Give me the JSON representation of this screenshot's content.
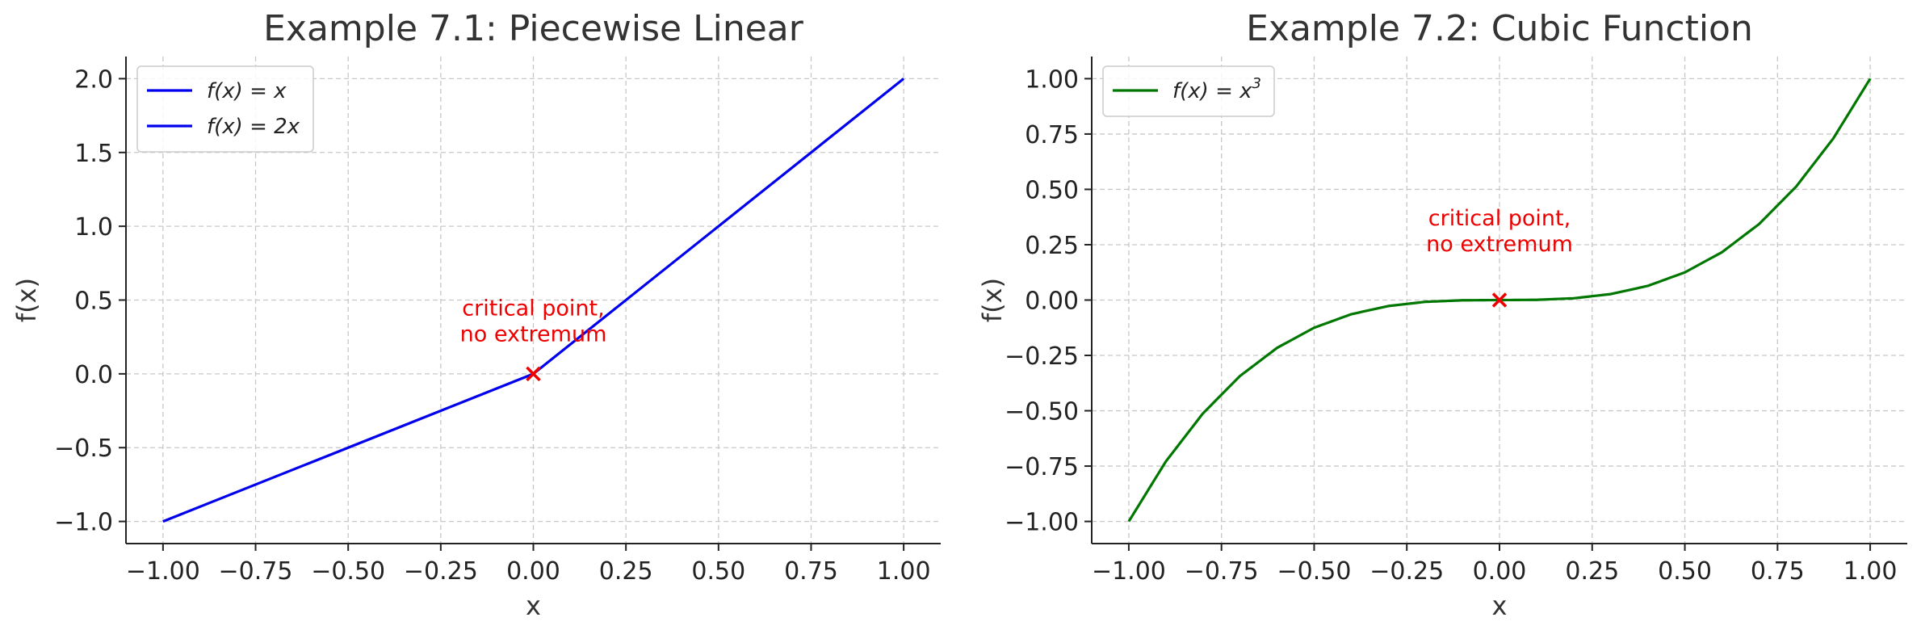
{
  "chart_data": [
    {
      "type": "line",
      "title": "Example 7.1: Piecewise Linear",
      "xlabel": "x",
      "ylabel": "f(x)",
      "xlim": [
        -1.1,
        1.1
      ],
      "ylim": [
        -1.15,
        2.15
      ],
      "grid": true,
      "legend_position": "top-left",
      "x_ticks": [
        "−1.00",
        "−0.75",
        "−0.50",
        "−0.25",
        "0.00",
        "0.25",
        "0.50",
        "0.75",
        "1.00"
      ],
      "x_tick_values": [
        -1.0,
        -0.75,
        -0.5,
        -0.25,
        0.0,
        0.25,
        0.5,
        0.75,
        1.0
      ],
      "y_ticks": [
        "−1.0",
        "−0.5",
        "0.0",
        "0.5",
        "1.0",
        "1.5",
        "2.0"
      ],
      "y_tick_values": [
        -1.0,
        -0.5,
        0.0,
        0.5,
        1.0,
        1.5,
        2.0
      ],
      "series": [
        {
          "name": "f(x) = x",
          "legend_main": "f(x) = x",
          "legend_sup": "",
          "color": "#0000ee",
          "x": [
            -1.0,
            0.0
          ],
          "y": [
            -1.0,
            0.0
          ]
        },
        {
          "name": "f(x) = 2x",
          "legend_main": "f(x) = 2x",
          "legend_sup": "",
          "color": "#0000ee",
          "x": [
            0.0,
            1.0
          ],
          "y": [
            0.0,
            2.0
          ]
        }
      ],
      "marker": {
        "x": 0.0,
        "y": 0.0,
        "symbol": "x",
        "color": "#ee0000"
      },
      "annotation": {
        "lines": [
          "critical point,",
          "no extremum"
        ],
        "x": 0.0,
        "y": 0.22,
        "color": "#ee0000"
      }
    },
    {
      "type": "line",
      "title": "Example 7.2: Cubic Function",
      "xlabel": "x",
      "ylabel": "f(x)",
      "xlim": [
        -1.1,
        1.1
      ],
      "ylim": [
        -1.1,
        1.1
      ],
      "grid": true,
      "legend_position": "top-left",
      "x_ticks": [
        "−1.00",
        "−0.75",
        "−0.50",
        "−0.25",
        "0.00",
        "0.25",
        "0.50",
        "0.75",
        "1.00"
      ],
      "x_tick_values": [
        -1.0,
        -0.75,
        -0.5,
        -0.25,
        0.0,
        0.25,
        0.5,
        0.75,
        1.0
      ],
      "y_ticks": [
        "−1.00",
        "−0.75",
        "−0.50",
        "−0.25",
        "0.00",
        "0.25",
        "0.50",
        "0.75",
        "1.00"
      ],
      "y_tick_values": [
        -1.0,
        -0.75,
        -0.5,
        -0.25,
        0.0,
        0.25,
        0.5,
        0.75,
        1.0
      ],
      "series": [
        {
          "name": "f(x) = x³",
          "legend_main": "f(x) = x",
          "legend_sup": "3",
          "color": "#007700",
          "x": [
            -1.0,
            -0.9,
            -0.8,
            -0.7,
            -0.6,
            -0.5,
            -0.4,
            -0.3,
            -0.2,
            -0.1,
            0.0,
            0.1,
            0.2,
            0.3,
            0.4,
            0.5,
            0.6,
            0.7,
            0.8,
            0.9,
            1.0
          ],
          "y": [
            -1.0,
            -0.729,
            -0.512,
            -0.343,
            -0.216,
            -0.125,
            -0.064,
            -0.027,
            -0.008,
            -0.001,
            0.0,
            0.001,
            0.008,
            0.027,
            0.064,
            0.125,
            0.216,
            0.343,
            0.512,
            0.729,
            1.0
          ]
        }
      ],
      "marker": {
        "x": 0.0,
        "y": 0.0,
        "symbol": "x",
        "color": "#ee0000"
      },
      "annotation": {
        "lines": [
          "critical point,",
          "no extremum"
        ],
        "x": 0.0,
        "y": 0.22,
        "color": "#ee0000"
      }
    }
  ]
}
